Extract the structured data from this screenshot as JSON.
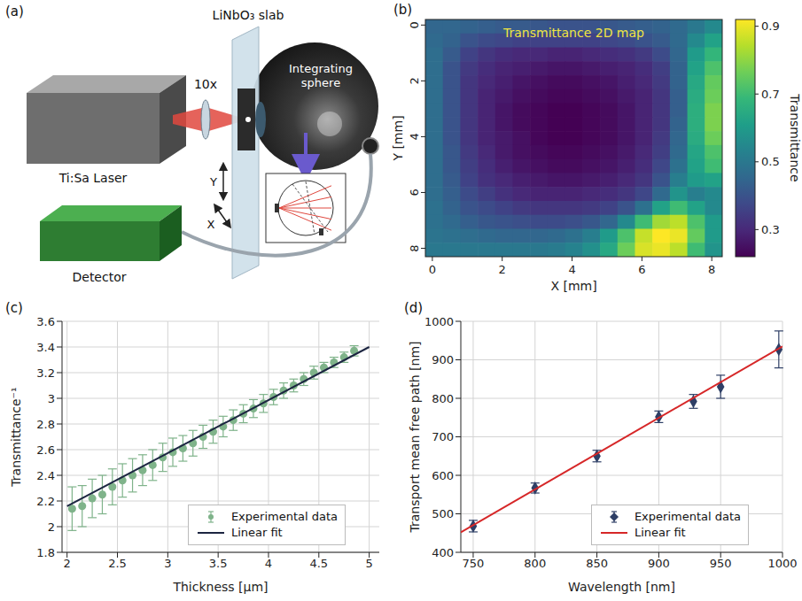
{
  "diagram": {
    "label": "(a)",
    "laser": "Ti:Sa Laser",
    "objective": "10x",
    "sample": "LiNbO₃ slab",
    "sphere": "Integrating sphere",
    "axes": [
      "Y",
      "X"
    ],
    "detector": "Detector"
  },
  "chart_data": [
    {
      "label": "(b)",
      "type": "heatmap",
      "title": "Transmittance 2D map",
      "xlabel": "X [mm]",
      "ylabel": "Y [mm]",
      "xlim": [
        -0.2,
        8.3
      ],
      "xticks": [
        0,
        2,
        4,
        6,
        8
      ],
      "ylim": [
        8.3,
        -0.2
      ],
      "yticks": [
        0,
        2,
        4,
        6,
        8
      ],
      "cells": [
        [
          0.45,
          0.45,
          0.44,
          0.43,
          0.42,
          0.42,
          0.41,
          0.4,
          0.4,
          0.4,
          0.41,
          0.42,
          0.43,
          0.44,
          0.46,
          0.5,
          0.55
        ],
        [
          0.46,
          0.44,
          0.4,
          0.38,
          0.37,
          0.36,
          0.36,
          0.36,
          0.36,
          0.36,
          0.37,
          0.38,
          0.4,
          0.42,
          0.46,
          0.55,
          0.62
        ],
        [
          0.47,
          0.42,
          0.36,
          0.33,
          0.31,
          0.3,
          0.3,
          0.29,
          0.29,
          0.3,
          0.31,
          0.32,
          0.34,
          0.38,
          0.45,
          0.6,
          0.68
        ],
        [
          0.47,
          0.4,
          0.34,
          0.31,
          0.29,
          0.28,
          0.27,
          0.26,
          0.26,
          0.27,
          0.28,
          0.29,
          0.31,
          0.35,
          0.44,
          0.62,
          0.72
        ],
        [
          0.47,
          0.4,
          0.33,
          0.3,
          0.28,
          0.26,
          0.25,
          0.24,
          0.24,
          0.25,
          0.26,
          0.28,
          0.3,
          0.34,
          0.44,
          0.64,
          0.75
        ],
        [
          0.47,
          0.4,
          0.33,
          0.29,
          0.27,
          0.25,
          0.24,
          0.23,
          0.23,
          0.24,
          0.25,
          0.27,
          0.29,
          0.33,
          0.43,
          0.65,
          0.76
        ],
        [
          0.47,
          0.4,
          0.33,
          0.29,
          0.26,
          0.24,
          0.23,
          0.22,
          0.22,
          0.23,
          0.24,
          0.26,
          0.29,
          0.33,
          0.43,
          0.66,
          0.78
        ],
        [
          0.47,
          0.4,
          0.33,
          0.29,
          0.26,
          0.24,
          0.23,
          0.22,
          0.22,
          0.23,
          0.24,
          0.26,
          0.29,
          0.33,
          0.44,
          0.66,
          0.78
        ],
        [
          0.47,
          0.4,
          0.33,
          0.29,
          0.27,
          0.25,
          0.23,
          0.22,
          0.22,
          0.23,
          0.24,
          0.26,
          0.29,
          0.34,
          0.45,
          0.65,
          0.76
        ],
        [
          0.47,
          0.41,
          0.34,
          0.3,
          0.27,
          0.25,
          0.24,
          0.23,
          0.23,
          0.24,
          0.25,
          0.27,
          0.3,
          0.35,
          0.46,
          0.63,
          0.72
        ],
        [
          0.47,
          0.41,
          0.35,
          0.31,
          0.28,
          0.26,
          0.25,
          0.24,
          0.24,
          0.25,
          0.26,
          0.28,
          0.31,
          0.37,
          0.48,
          0.62,
          0.7
        ],
        [
          0.47,
          0.42,
          0.36,
          0.32,
          0.3,
          0.28,
          0.27,
          0.26,
          0.26,
          0.27,
          0.28,
          0.3,
          0.33,
          0.4,
          0.52,
          0.6,
          0.62
        ],
        [
          0.47,
          0.43,
          0.38,
          0.35,
          0.32,
          0.3,
          0.29,
          0.29,
          0.29,
          0.3,
          0.31,
          0.33,
          0.37,
          0.46,
          0.58,
          0.52,
          0.55
        ],
        [
          0.48,
          0.44,
          0.4,
          0.38,
          0.36,
          0.34,
          0.33,
          0.33,
          0.33,
          0.34,
          0.36,
          0.4,
          0.48,
          0.62,
          0.7,
          0.62,
          0.55
        ],
        [
          0.48,
          0.46,
          0.43,
          0.41,
          0.4,
          0.39,
          0.38,
          0.38,
          0.39,
          0.41,
          0.45,
          0.55,
          0.7,
          0.82,
          0.85,
          0.72,
          0.6
        ],
        [
          0.49,
          0.48,
          0.47,
          0.46,
          0.45,
          0.45,
          0.45,
          0.46,
          0.48,
          0.52,
          0.6,
          0.72,
          0.86,
          0.92,
          0.9,
          0.75,
          0.6
        ],
        [
          0.5,
          0.5,
          0.5,
          0.5,
          0.5,
          0.5,
          0.5,
          0.51,
          0.53,
          0.57,
          0.64,
          0.76,
          0.88,
          0.9,
          0.85,
          0.7,
          0.58
        ]
      ],
      "colorbar": {
        "label": "Transmittance",
        "range": [
          0.22,
          0.92
        ],
        "ticks": [
          0.3,
          0.5,
          0.7,
          0.9
        ]
      }
    },
    {
      "label": "(c)",
      "type": "scatter",
      "xlabel": "Thickness [µm]",
      "ylabel": "Transmittance⁻¹",
      "xlim": [
        1.95,
        5.1
      ],
      "xticks": [
        2,
        2.5,
        3,
        3.5,
        4,
        4.5,
        5
      ],
      "ylim": [
        1.8,
        3.6
      ],
      "yticks": [
        1.8,
        2,
        2.2,
        2.4,
        2.6,
        2.8,
        3,
        3.2,
        3.4,
        3.6
      ],
      "grid": true,
      "legend": "lower right",
      "series": [
        {
          "name": "Experimental data",
          "type": "scatter",
          "marker": "circle",
          "color": "#7fb38a",
          "x": [
            2.05,
            2.15,
            2.25,
            2.35,
            2.45,
            2.55,
            2.65,
            2.75,
            2.85,
            2.95,
            3.05,
            3.15,
            3.25,
            3.35,
            3.45,
            3.55,
            3.65,
            3.75,
            3.85,
            3.95,
            4.05,
            4.15,
            4.25,
            4.35,
            4.45,
            4.55,
            4.65,
            4.75,
            4.85
          ],
          "values": [
            2.14,
            2.16,
            2.22,
            2.25,
            2.31,
            2.36,
            2.4,
            2.44,
            2.48,
            2.54,
            2.58,
            2.61,
            2.65,
            2.7,
            2.74,
            2.78,
            2.83,
            2.88,
            2.92,
            2.96,
            3.01,
            3.06,
            3.1,
            3.15,
            3.2,
            3.24,
            3.28,
            3.32,
            3.37
          ],
          "errors": [
            0.17,
            0.16,
            0.15,
            0.15,
            0.14,
            0.13,
            0.13,
            0.12,
            0.12,
            0.11,
            0.11,
            0.1,
            0.1,
            0.09,
            0.09,
            0.08,
            0.08,
            0.07,
            0.07,
            0.07,
            0.06,
            0.06,
            0.05,
            0.05,
            0.05,
            0.04,
            0.04,
            0.04,
            0.04
          ]
        },
        {
          "name": "Linear fit",
          "type": "line",
          "color": "#1c2541",
          "x": [
            2,
            5
          ],
          "values": [
            2.16,
            3.4
          ]
        }
      ]
    },
    {
      "label": "(d)",
      "type": "scatter",
      "xlabel": "Wavelength [nm]",
      "ylabel": "Transport mean free path [nm]",
      "xlim": [
        740,
        1000
      ],
      "xticks": [
        750,
        800,
        850,
        900,
        950,
        1000
      ],
      "ylim": [
        400,
        1000
      ],
      "yticks": [
        400,
        500,
        600,
        700,
        800,
        900,
        1000
      ],
      "grid": true,
      "legend": "lower right",
      "series": [
        {
          "name": "Experimental data",
          "type": "scatter",
          "marker": "diamond",
          "color": "#2e3f66",
          "x": [
            750,
            800,
            850,
            900,
            928,
            950,
            997
          ],
          "values": [
            468,
            567,
            650,
            752,
            792,
            830,
            927
          ],
          "errors": [
            15,
            13,
            15,
            15,
            18,
            30,
            48
          ]
        },
        {
          "name": "Linear fit",
          "type": "line",
          "color": "#d62728",
          "x": [
            740,
            1000
          ],
          "values": [
            452,
            935
          ]
        }
      ]
    }
  ]
}
